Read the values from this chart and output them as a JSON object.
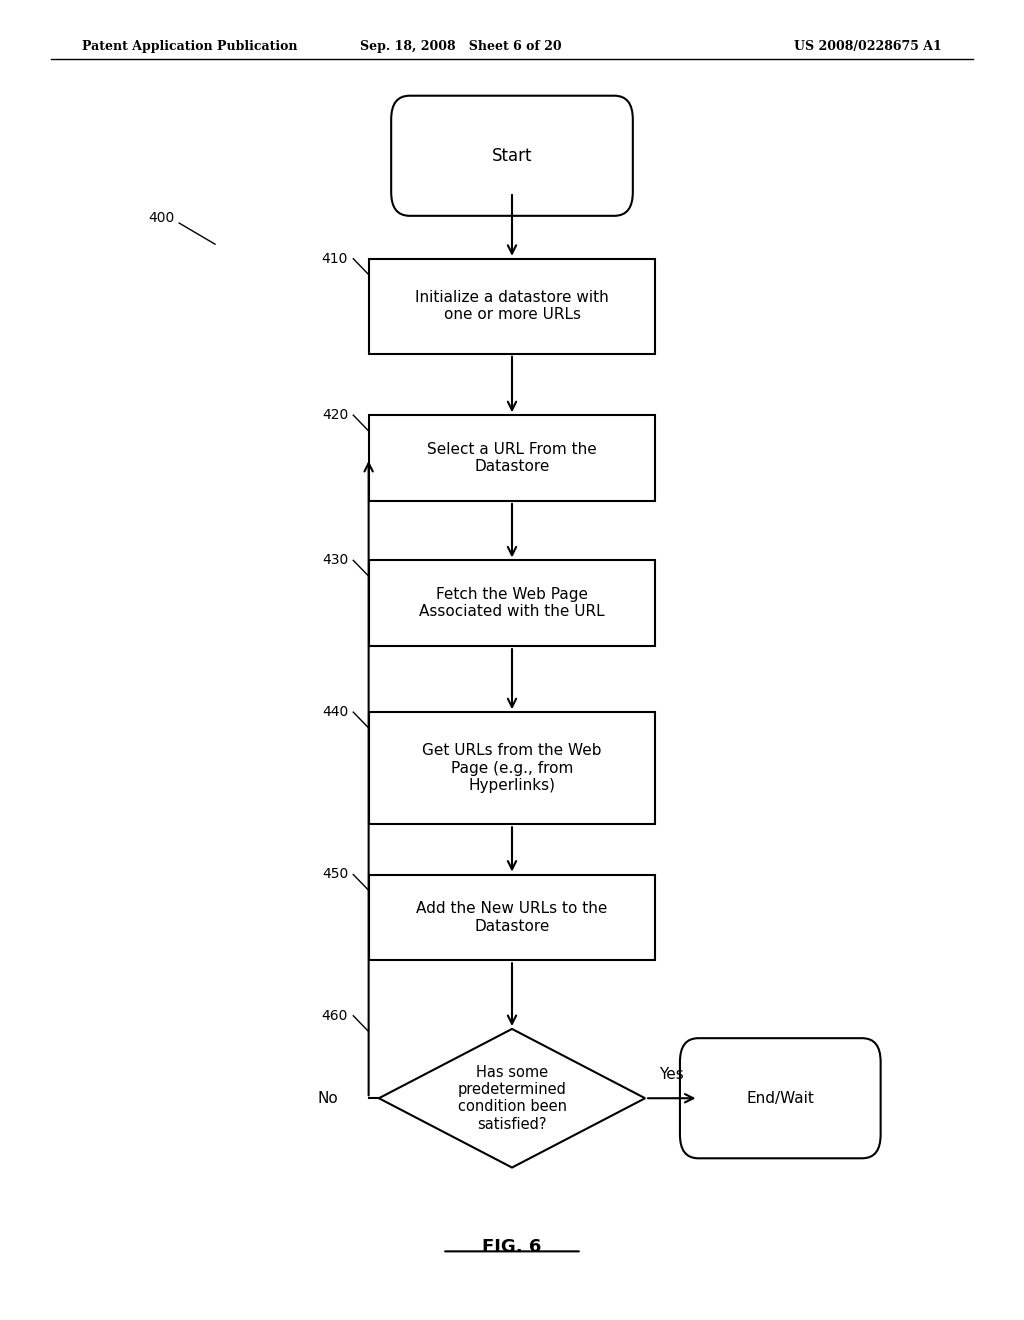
{
  "bg_color": "#ffffff",
  "header_left": "Patent Application Publication",
  "header_center": "Sep. 18, 2008   Sheet 6 of 20",
  "header_right": "US 2008/0228675 A1",
  "figure_label": "FIG. 6",
  "start_label": "Start",
  "n410_label": "Initialize a datastore with\none or more URLs",
  "n420_label": "Select a URL From the\nDatastore",
  "n430_label": "Fetch the Web Page\nAssociated with the URL",
  "n440_label": "Get URLs from the Web\nPage (e.g., from\nHyperlinks)",
  "n450_label": "Add the New URLs to the\nDatastore",
  "n460_label": "Has some\npredetermined\ncondition been\nsatisfied?",
  "endwait_label": "End/Wait",
  "yes_label": "Yes",
  "no_label": "No",
  "step_labels": [
    "410",
    "420",
    "430",
    "440",
    "450",
    "460"
  ],
  "label_400": "400"
}
